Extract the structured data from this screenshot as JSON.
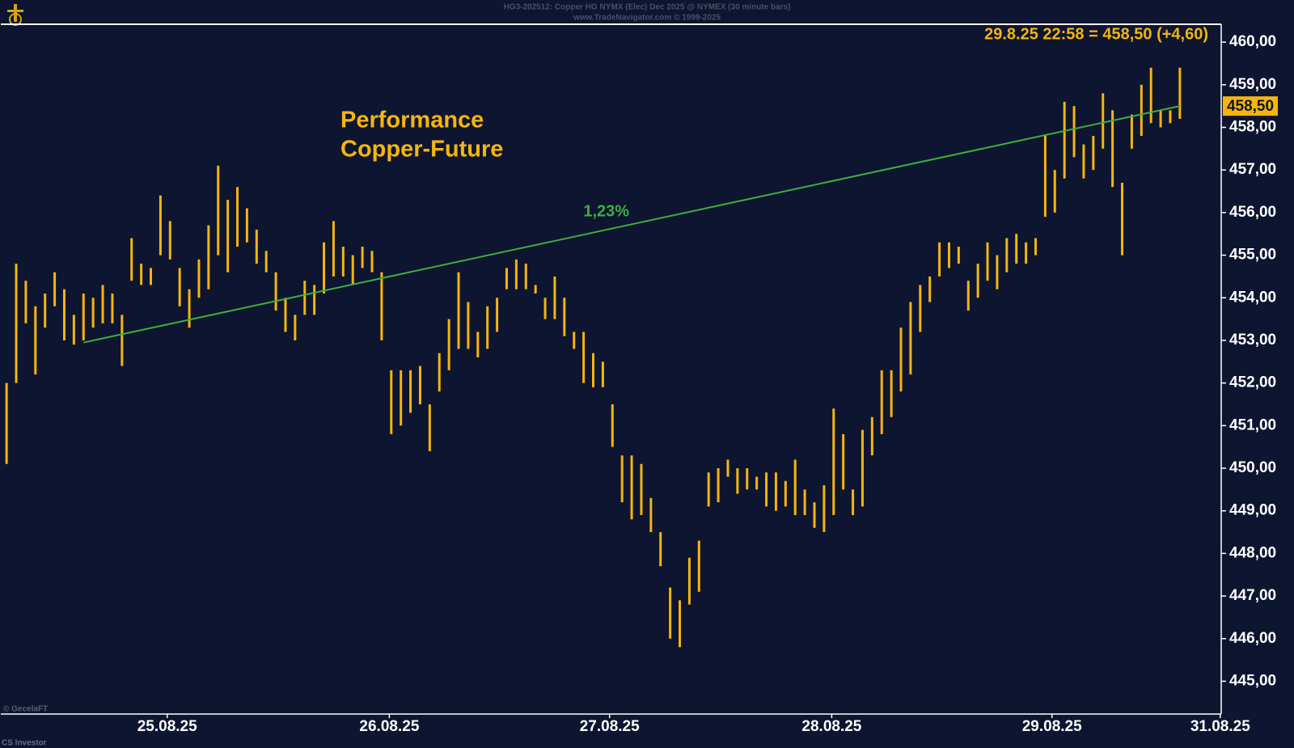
{
  "chart_data": {
    "type": "range-bar",
    "title": "HG3-202512:  Copper HG NYMX (Elec) Dec 2025 @ NYMEX  (30 minute bars)",
    "subtitle": "www.TradeNavigator.com © 1999-2025",
    "heading": [
      "Performance",
      "Copper-Future"
    ],
    "last_quote": "29.8.25 22:58 = 458,50 (+4,60)",
    "credits": [
      "© GecelaFT",
      "CS Investor"
    ],
    "color": "#f5b50f",
    "x": [
      0,
      1,
      2,
      3,
      4,
      5,
      6,
      7,
      8,
      9,
      10,
      11,
      12,
      13,
      14,
      15,
      16,
      17,
      18,
      19,
      20,
      21,
      22,
      23,
      24,
      25,
      26,
      27,
      28,
      29,
      30,
      31,
      32,
      33,
      34,
      35,
      36,
      37,
      38,
      39,
      40,
      41,
      42,
      43,
      44,
      45,
      46,
      47,
      48,
      49,
      50,
      51,
      52,
      53,
      54,
      55,
      56,
      57,
      58,
      59,
      60,
      61,
      62,
      63,
      64,
      65,
      66,
      67,
      68,
      69,
      70,
      71,
      72,
      73,
      74,
      75,
      76,
      77,
      78,
      79,
      80,
      81,
      82,
      83,
      84,
      85,
      86,
      87,
      88,
      89,
      90,
      91,
      92,
      93,
      94,
      95,
      96,
      97,
      98,
      99,
      100,
      101,
      102,
      103,
      104,
      105,
      106,
      107,
      108,
      109,
      110,
      111,
      112,
      113,
      114,
      115,
      116,
      117,
      118,
      119,
      120,
      121,
      122
    ],
    "high": [
      452.0,
      454.8,
      454.4,
      453.8,
      454.1,
      454.6,
      454.2,
      453.6,
      454.1,
      454.0,
      454.3,
      454.1,
      453.6,
      455.4,
      454.8,
      454.7,
      456.4,
      455.8,
      454.7,
      454.2,
      454.9,
      455.7,
      457.1,
      456.3,
      456.6,
      456.1,
      455.6,
      455.1,
      454.6,
      454.0,
      453.6,
      454.4,
      454.3,
      455.3,
      455.8,
      455.2,
      455.0,
      455.2,
      455.1,
      454.6,
      452.3,
      452.3,
      452.3,
      452.4,
      451.5,
      452.7,
      453.5,
      454.6,
      453.9,
      453.2,
      453.8,
      454.0,
      454.7,
      454.9,
      454.8,
      454.3,
      454.0,
      454.5,
      454.0,
      453.2,
      453.2,
      452.7,
      452.5,
      451.5,
      450.3,
      450.3,
      450.1,
      449.3,
      448.5,
      447.2,
      446.9,
      447.9,
      448.3,
      449.9,
      450.0,
      450.2,
      450.0,
      450.0,
      449.8,
      449.9,
      449.9,
      449.7,
      450.2,
      449.5,
      449.2,
      449.6,
      451.4,
      450.8,
      449.5,
      450.9,
      451.2,
      452.3,
      452.3,
      453.3,
      453.9,
      454.3,
      454.5,
      455.3,
      455.3,
      455.2,
      454.4,
      454.8,
      455.3,
      455.0,
      455.4,
      455.5,
      455.3,
      455.4,
      457.8,
      457.0,
      458.6,
      458.5,
      457.6,
      457.8,
      458.8,
      458.4,
      456.7,
      458.3,
      459.0,
      459.4,
      458.4,
      458.4,
      459.4
    ],
    "low": [
      450.1,
      452.0,
      453.4,
      452.2,
      453.3,
      453.8,
      453.0,
      452.9,
      453.0,
      453.3,
      453.4,
      453.4,
      452.4,
      454.4,
      454.3,
      454.3,
      455.0,
      454.9,
      453.8,
      453.3,
      454.0,
      454.2,
      455.0,
      454.6,
      455.2,
      455.3,
      454.8,
      454.6,
      453.7,
      453.2,
      453.0,
      453.6,
      453.6,
      454.1,
      454.5,
      454.5,
      454.3,
      454.7,
      454.6,
      453.0,
      450.8,
      451.0,
      451.3,
      451.5,
      450.4,
      451.8,
      452.3,
      452.8,
      452.8,
      452.6,
      452.8,
      453.2,
      454.2,
      454.2,
      454.2,
      454.1,
      453.5,
      453.5,
      453.1,
      452.8,
      452.0,
      451.9,
      451.9,
      450.5,
      449.2,
      448.8,
      448.9,
      448.5,
      447.7,
      446.0,
      445.8,
      446.8,
      447.1,
      449.1,
      449.2,
      449.8,
      449.4,
      449.5,
      449.5,
      449.1,
      449.0,
      449.1,
      448.9,
      448.9,
      448.6,
      448.5,
      448.9,
      449.5,
      448.9,
      449.1,
      450.3,
      450.8,
      451.2,
      451.8,
      452.2,
      453.2,
      453.9,
      454.5,
      454.7,
      454.8,
      453.7,
      454.0,
      454.4,
      454.2,
      454.6,
      454.8,
      454.8,
      455.0,
      455.9,
      456.0,
      456.8,
      457.3,
      456.8,
      457.0,
      457.5,
      456.6,
      455.0,
      457.5,
      457.8,
      458.1,
      458.0,
      458.1,
      458.2
    ],
    "trendline": {
      "x": [
        8,
        122
      ],
      "y": [
        452.95,
        458.5
      ],
      "label": "1,23%",
      "color": "#3fae3f"
    },
    "last_price": {
      "value": 458.5,
      "label": "458,50"
    },
    "xlim": [
      -0.6,
      126.3
    ],
    "xticks": [
      {
        "value": 16.7,
        "label": "25.08.25"
      },
      {
        "value": 39.8,
        "label": "26.08.25"
      },
      {
        "value": 62.7,
        "label": "27.08.25"
      },
      {
        "value": 85.8,
        "label": "28.08.25"
      },
      {
        "value": 108.7,
        "label": "29.08.25"
      },
      {
        "value": 126.2,
        "label": "31.08.25"
      }
    ],
    "ylim": [
      444.23,
      460.42
    ],
    "yticks": [
      {
        "value": 445,
        "label": "445,00"
      },
      {
        "value": 446,
        "label": "446,00"
      },
      {
        "value": 447,
        "label": "447,00"
      },
      {
        "value": 448,
        "label": "448,00"
      },
      {
        "value": 449,
        "label": "449,00"
      },
      {
        "value": 450,
        "label": "450,00"
      },
      {
        "value": 451,
        "label": "451,00"
      },
      {
        "value": 452,
        "label": "452,00"
      },
      {
        "value": 453,
        "label": "453,00"
      },
      {
        "value": 454,
        "label": "454,00"
      },
      {
        "value": 455,
        "label": "455,00"
      },
      {
        "value": 456,
        "label": "456,00"
      },
      {
        "value": 457,
        "label": "457,00"
      },
      {
        "value": 458,
        "label": "458,00"
      },
      {
        "value": 459,
        "label": "459,00"
      },
      {
        "value": 460,
        "label": "460,00"
      }
    ]
  }
}
